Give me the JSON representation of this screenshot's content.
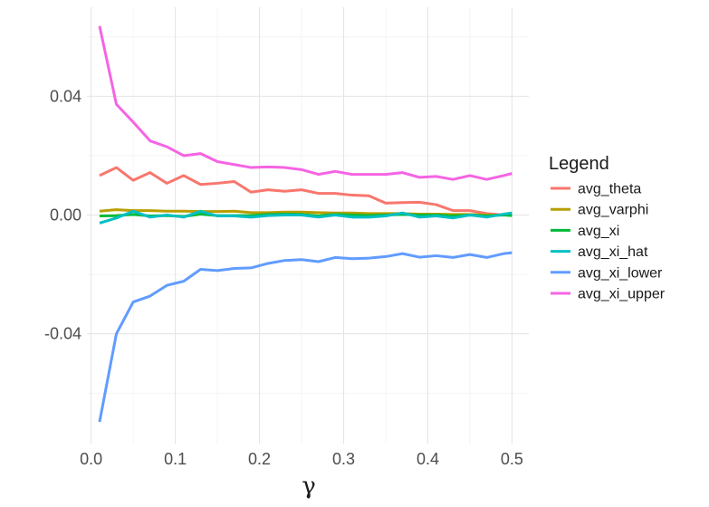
{
  "chart_data": {
    "type": "line",
    "title": "",
    "xlabel": "γ",
    "ylabel": "",
    "xlim": [
      -0.005,
      0.52
    ],
    "ylim": [
      -0.077,
      0.07
    ],
    "x_ticks": [
      0.0,
      0.1,
      0.2,
      0.3,
      0.4,
      0.5
    ],
    "x_tick_labels": [
      "0.0",
      "0.1",
      "0.2",
      "0.3",
      "0.4",
      "0.5"
    ],
    "y_ticks": [
      0.04,
      0.0,
      -0.04
    ],
    "y_tick_labels": [
      "0.04",
      "0.00",
      "-0.04"
    ],
    "grid": true,
    "legend": {
      "title": "Legend",
      "position": "right"
    },
    "x": [
      0.01,
      0.03,
      0.05,
      0.07,
      0.09,
      0.11,
      0.13,
      0.15,
      0.17,
      0.19,
      0.21,
      0.23,
      0.25,
      0.27,
      0.29,
      0.31,
      0.33,
      0.35,
      0.37,
      0.39,
      0.41,
      0.43,
      0.45,
      0.47,
      0.49,
      0.5
    ],
    "series": [
      {
        "name": "avg_theta",
        "color": "#F8766D",
        "values": [
          0.0133,
          0.016,
          0.0117,
          0.0143,
          0.0107,
          0.0133,
          0.0103,
          0.0107,
          0.0113,
          0.0077,
          0.0085,
          0.008,
          0.0085,
          0.0073,
          0.0073,
          0.0067,
          0.0065,
          0.004,
          0.0042,
          0.0043,
          0.0035,
          0.0015,
          0.0015,
          0.0005,
          0.0,
          0.0
        ]
      },
      {
        "name": "avg_varphi",
        "color": "#B79F00",
        "values": [
          0.0013,
          0.0018,
          0.0015,
          0.0015,
          0.0013,
          0.0013,
          0.0012,
          0.0012,
          0.0013,
          0.0008,
          0.0008,
          0.001,
          0.001,
          0.0008,
          0.0007,
          0.0007,
          0.0005,
          0.0005,
          0.0005,
          0.0003,
          0.0003,
          0.0002,
          0.0002,
          0.0,
          0.0,
          0.0
        ]
      },
      {
        "name": "avg_xi",
        "color": "#00BA38",
        "values": [
          -0.0003,
          -0.0002,
          0.0002,
          -0.0003,
          -0.0002,
          -0.0005,
          0.0003,
          -0.0002,
          -0.0002,
          -0.0002,
          0.0002,
          0.0003,
          0.0002,
          -0.0003,
          0.0002,
          0.0,
          -0.0002,
          0.0,
          0.0002,
          0.0,
          0.0,
          -0.0003,
          0.0,
          -0.0003,
          0.0,
          -0.0002
        ]
      },
      {
        "name": "avg_xi_hat",
        "color": "#00BFC4",
        "values": [
          -0.0027,
          -0.001,
          0.0013,
          -0.0007,
          0.0,
          -0.0007,
          0.0013,
          -0.0003,
          -0.0003,
          -0.0007,
          -0.0002,
          0.0,
          0.0,
          -0.0007,
          0.0,
          -0.0007,
          -0.0007,
          -0.0003,
          0.0007,
          -0.0007,
          -0.0003,
          -0.001,
          0.0,
          -0.0007,
          0.0003,
          0.0007
        ]
      },
      {
        "name": "avg_xi_lower",
        "color": "#619CFF",
        "values": [
          -0.0697,
          -0.04,
          -0.0293,
          -0.0273,
          -0.0237,
          -0.0223,
          -0.0183,
          -0.0187,
          -0.018,
          -0.0178,
          -0.0163,
          -0.0153,
          -0.015,
          -0.0157,
          -0.0143,
          -0.0147,
          -0.0145,
          -0.014,
          -0.013,
          -0.0142,
          -0.0137,
          -0.0143,
          -0.0133,
          -0.0143,
          -0.013,
          -0.0127
        ]
      },
      {
        "name": "avg_xi_upper",
        "color": "#F564E3",
        "values": [
          0.0637,
          0.0373,
          0.0313,
          0.025,
          0.023,
          0.02,
          0.0207,
          0.018,
          0.017,
          0.016,
          0.0162,
          0.016,
          0.0153,
          0.0137,
          0.0147,
          0.0137,
          0.0137,
          0.0137,
          0.0143,
          0.0127,
          0.013,
          0.012,
          0.0133,
          0.012,
          0.0133,
          0.014
        ]
      }
    ]
  }
}
